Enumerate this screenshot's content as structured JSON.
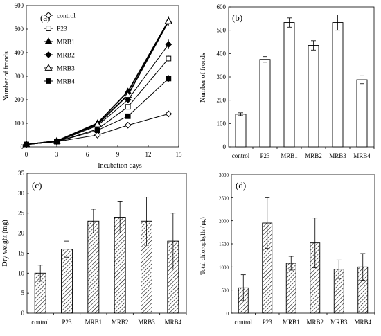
{
  "chart_data": [
    {
      "type": "line",
      "panel_label": "(a)",
      "xlabel": "Incubation days",
      "ylabel": "Number of fronds",
      "xlim": [
        0,
        15
      ],
      "ylim": [
        0,
        600
      ],
      "xticks": [
        "0",
        "3",
        "6",
        "9",
        "12",
        "15"
      ],
      "yticks": [
        "0",
        "100",
        "200",
        "300",
        "400",
        "500",
        "600"
      ],
      "x": [
        0,
        3,
        7,
        10,
        14
      ],
      "legend_position": "top-left",
      "series": [
        {
          "name": "control",
          "marker": "diamond-open",
          "values": [
            10,
            22,
            50,
            92,
            140
          ],
          "errors": [
            2,
            3,
            4,
            5,
            6
          ]
        },
        {
          "name": "P23",
          "marker": "square-open",
          "values": [
            10,
            22,
            75,
            170,
            375
          ],
          "errors": [
            2,
            3,
            5,
            8,
            12
          ]
        },
        {
          "name": "MRB1",
          "marker": "triangle-filled",
          "values": [
            10,
            25,
            100,
            235,
            535
          ],
          "errors": [
            2,
            3,
            6,
            10,
            20
          ]
        },
        {
          "name": "MRB2",
          "marker": "diamond-filled",
          "values": [
            10,
            22,
            90,
            200,
            435
          ],
          "errors": [
            2,
            3,
            6,
            10,
            20
          ]
        },
        {
          "name": "MRB3",
          "marker": "triangle-open",
          "values": [
            10,
            25,
            95,
            220,
            533
          ],
          "errors": [
            2,
            3,
            6,
            10,
            15
          ]
        },
        {
          "name": "MRB4",
          "marker": "square-filled",
          "values": [
            10,
            22,
            70,
            130,
            290
          ],
          "errors": [
            2,
            3,
            5,
            8,
            15
          ]
        }
      ]
    },
    {
      "type": "bar",
      "panel_label": "(b)",
      "ylabel": "Number of fronds",
      "ylim": [
        0,
        600
      ],
      "yticks": [
        "0",
        "100",
        "200",
        "300",
        "400",
        "500",
        "600"
      ],
      "categories": [
        "control",
        "P23",
        "MRB1",
        "MRB2",
        "MRB3",
        "MRB4"
      ],
      "values": [
        140,
        375,
        533,
        435,
        533,
        288
      ],
      "errors": [
        6,
        12,
        20,
        20,
        33,
        17
      ],
      "fill": "open"
    },
    {
      "type": "bar",
      "panel_label": "(c)",
      "ylabel": "Dry weight (mg)",
      "ylim": [
        0,
        35
      ],
      "yticks": [
        "0",
        "5",
        "10",
        "15",
        "20",
        "25",
        "30",
        "35"
      ],
      "categories": [
        "control",
        "P23",
        "MRB1",
        "MRB2",
        "MRB3",
        "MRB4"
      ],
      "values": [
        10,
        16,
        23,
        24,
        23,
        18
      ],
      "errors": [
        2,
        2,
        3,
        4,
        6,
        7
      ],
      "fill": "hatched"
    },
    {
      "type": "bar",
      "panel_label": "(d)",
      "ylabel": "Total chlorophylls (µg)",
      "ylim": [
        0,
        3000
      ],
      "yticks": [
        "0",
        "500",
        "1000",
        "1500",
        "2000",
        "2500",
        "3000"
      ],
      "categories": [
        "control",
        "P23",
        "MRB1",
        "MRB2",
        "MRB3",
        "MRB4"
      ],
      "values": [
        550,
        1950,
        1080,
        1520,
        950,
        1000
      ],
      "errors": [
        280,
        550,
        150,
        540,
        200,
        290
      ],
      "fill": "hatched"
    }
  ]
}
